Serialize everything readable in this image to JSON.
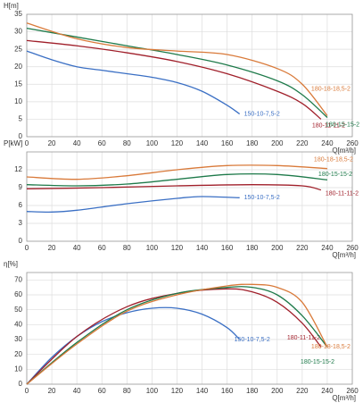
{
  "chart_data": [
    {
      "type": "line",
      "y_label": "H[m]",
      "x_label": "Q[m³/h]",
      "xlim": [
        0,
        260
      ],
      "xticks": [
        0,
        20,
        40,
        60,
        80,
        100,
        120,
        140,
        160,
        180,
        200,
        220,
        240,
        260
      ],
      "ylim": [
        0,
        35
      ],
      "yticks": [
        0,
        5,
        10,
        15,
        20,
        25,
        30,
        35
      ],
      "grid": true,
      "series": [
        {
          "name": "150-10-7,5-2",
          "color": "#3a6fc4",
          "x": [
            0,
            20,
            40,
            60,
            80,
            100,
            120,
            140,
            160,
            170
          ],
          "values": [
            24.5,
            22,
            20,
            19,
            18,
            17,
            15.5,
            13,
            9,
            6.5
          ]
        },
        {
          "name": "180-11-11-2",
          "color": "#a01f2a",
          "x": [
            0,
            40,
            80,
            120,
            160,
            200,
            220,
            235
          ],
          "values": [
            27.5,
            26,
            24,
            21.5,
            18,
            13,
            9.5,
            5
          ]
        },
        {
          "name": "180-15-15-2",
          "color": "#1e7a4a",
          "x": [
            0,
            40,
            80,
            120,
            160,
            200,
            220,
            240
          ],
          "values": [
            31,
            28.5,
            26,
            23.5,
            20.5,
            16,
            12,
            5.5
          ]
        },
        {
          "name": "180-18-18,5-2",
          "color": "#d97a3a",
          "x": [
            0,
            40,
            80,
            120,
            160,
            200,
            220,
            240
          ],
          "values": [
            32.5,
            28,
            25.5,
            24.5,
            23.5,
            19.5,
            15,
            6
          ]
        }
      ]
    },
    {
      "type": "line",
      "y_label": "P[kW]",
      "x_label": "Q[m³/h]",
      "xlim": [
        0,
        260
      ],
      "xticks": [
        0,
        20,
        40,
        60,
        80,
        100,
        120,
        140,
        160,
        180,
        200,
        220,
        240,
        260
      ],
      "ylim": [
        0,
        15
      ],
      "yticks": [
        0,
        3,
        6,
        9,
        12
      ],
      "grid": true,
      "series": [
        {
          "name": "150-10-7,5-2",
          "color": "#3a6fc4",
          "x": [
            0,
            20,
            40,
            80,
            120,
            140,
            170
          ],
          "values": [
            5,
            4.9,
            5.2,
            6.3,
            7.2,
            7.5,
            7.3
          ]
        },
        {
          "name": "180-11-11-2",
          "color": "#a01f2a",
          "x": [
            0,
            60,
            120,
            180,
            220,
            235
          ],
          "values": [
            8.8,
            9,
            9.3,
            9.5,
            9.3,
            8.6
          ]
        },
        {
          "name": "180-15-15-2",
          "color": "#1e7a4a",
          "x": [
            0,
            40,
            80,
            120,
            160,
            200,
            240
          ],
          "values": [
            9.5,
            9.3,
            9.6,
            10.4,
            11.2,
            11.2,
            10.3
          ]
        },
        {
          "name": "180-18-18,5-2",
          "color": "#d97a3a",
          "x": [
            0,
            40,
            80,
            120,
            160,
            200,
            240
          ],
          "values": [
            10.8,
            10.4,
            11,
            12,
            12.7,
            12.7,
            12.2
          ]
        }
      ]
    },
    {
      "type": "line",
      "y_label": "η[%]",
      "x_label": "Q[m³/h]",
      "xlim": [
        0,
        260
      ],
      "xticks": [
        0,
        20,
        40,
        60,
        80,
        100,
        120,
        140,
        160,
        180,
        200,
        220,
        240,
        260
      ],
      "ylim": [
        0,
        75
      ],
      "yticks": [
        0,
        10,
        20,
        30,
        40,
        50,
        60,
        70
      ],
      "grid": true,
      "series": [
        {
          "name": "150-10-7,5-2",
          "color": "#3a6fc4",
          "x": [
            0,
            20,
            40,
            60,
            80,
            100,
            120,
            140,
            160,
            170
          ],
          "values": [
            0,
            18,
            32,
            42,
            48,
            51,
            51,
            47,
            38,
            30
          ]
        },
        {
          "name": "180-11-11-2",
          "color": "#a01f2a",
          "x": [
            0,
            40,
            80,
            120,
            160,
            180,
            200,
            220,
            235
          ],
          "values": [
            0,
            32,
            52,
            61,
            64,
            62,
            55,
            41,
            25
          ]
        },
        {
          "name": "180-15-15-2",
          "color": "#1e7a4a",
          "x": [
            0,
            40,
            80,
            120,
            160,
            180,
            200,
            220,
            240
          ],
          "values": [
            0,
            28,
            50,
            61,
            65,
            65,
            60,
            46,
            25
          ]
        },
        {
          "name": "180-18-18,5-2",
          "color": "#d97a3a",
          "x": [
            0,
            40,
            80,
            120,
            160,
            180,
            200,
            220,
            240
          ],
          "values": [
            0,
            27,
            49,
            60,
            66,
            67,
            65,
            55,
            25
          ]
        }
      ]
    }
  ]
}
